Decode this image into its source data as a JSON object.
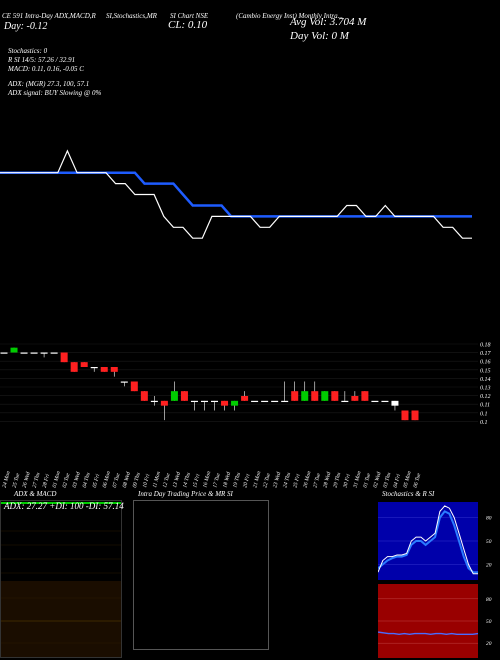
{
  "header": {
    "col1_line1": "CE 591 Intra-Day ADX,MACD,R",
    "col2_line1": "SI,Stochastics,MR",
    "col3_line1": "SI Chart NSE",
    "col4_line1": "(Cambio Energy Inst) Monthly Intra...",
    "ce_label": "CE",
    "day_change": "Day: -0.12",
    "close": "CL: 0.10",
    "avg_vol": "Avg Vol: 3.704  M",
    "day_vol": "Day Vol: 0  M",
    "stoch_line": "Stochastics: 0",
    "rsi_line": "R                    SI 14/5: 57.26  / 32.91",
    "macd_line": "MACD: 0.11,  0.16,  -0.05 C",
    "adx_line": "ADX:                         (MGR) 27.3,  100,  57.1",
    "adx_signal_line": "ADX   signal:                           BUY Slowing @ 0%"
  },
  "colors": {
    "background": "#000000",
    "price_line": "#ffffff",
    "ma_line": "#1e5cff",
    "candle_up": "#00cc00",
    "candle_down": "#ff2020",
    "adx_green": "#00cc00",
    "stoch_fill": "#0000aa",
    "rsi_fill": "#990000"
  },
  "chart_data": [
    {
      "type": "line",
      "name": "price-trend",
      "x": [
        1,
        2,
        3,
        4,
        5,
        6,
        7,
        8,
        9,
        10,
        11,
        12,
        13,
        14,
        15,
        16,
        17,
        18,
        19,
        20,
        21,
        22,
        23,
        24,
        25,
        26,
        27,
        28,
        29,
        30,
        31,
        32,
        33,
        34,
        35,
        36,
        37,
        38,
        39,
        40,
        41,
        42,
        43,
        44,
        45,
        46,
        47,
        48,
        49,
        50
      ],
      "series": [
        {
          "values": [
            0.18,
            0.18,
            0.18,
            0.18,
            0.18,
            0.18,
            0.18,
            0.19,
            0.18,
            0.18,
            0.18,
            0.18,
            0.175,
            0.175,
            0.17,
            0.17,
            0.17,
            0.16,
            0.155,
            0.155,
            0.15,
            0.15,
            0.16,
            0.16,
            0.16,
            0.16,
            0.16,
            0.155,
            0.155,
            0.16,
            0.16,
            0.16,
            0.16,
            0.16,
            0.16,
            0.16,
            0.165,
            0.165,
            0.16,
            0.16,
            0.165,
            0.16,
            0.16,
            0.16,
            0.16,
            0.16,
            0.155,
            0.155,
            0.15,
            0.15
          ]
        },
        {
          "values": [
            0.18,
            0.18,
            0.18,
            0.18,
            0.18,
            0.18,
            0.18,
            0.18,
            0.18,
            0.18,
            0.18,
            0.18,
            0.18,
            0.18,
            0.18,
            0.175,
            0.175,
            0.175,
            0.175,
            0.17,
            0.165,
            0.165,
            0.165,
            0.165,
            0.16,
            0.16,
            0.16,
            0.16,
            0.16,
            0.16,
            0.16,
            0.16,
            0.16,
            0.16,
            0.16,
            0.16,
            0.16,
            0.16,
            0.16,
            0.16,
            0.16,
            0.16,
            0.16,
            0.16,
            0.16,
            0.16,
            0.16,
            0.16,
            0.16,
            0.16
          ]
        }
      ]
    },
    {
      "type": "bar",
      "name": "candles",
      "categories": [
        "24 Mon",
        "25 Tue",
        "26 Wed",
        "27 Thu",
        "28 Fri",
        "01 Mon",
        "02 Tue",
        "03 Wed",
        "04 Thu",
        "05 Fri",
        "06 Mon",
        "07 Tue",
        "08 Wed",
        "09 Thu",
        "10 Fri",
        "11 Mon",
        "12 Tue",
        "13 Wed",
        "14 Thu",
        "15 Fri",
        "16 Mon",
        "17 Tue",
        "18 Wed",
        "19 Thu",
        "20 Fri",
        "21 Mon",
        "22 Tue",
        "23 Wed",
        "24 Thu",
        "25 Fri",
        "26 Mon",
        "27 Tue",
        "28 Wed",
        "29 Thu",
        "30 Fri",
        "31 Mon",
        "01 Tue",
        "02 Wed",
        "03 Thu",
        "04 Fri",
        "05 Mon",
        "06 Tue"
      ],
      "y_ticks": [
        "0.18",
        "0.17",
        "0.16",
        "0.15",
        "0.14",
        "0.13",
        "0.12",
        "0.11",
        "0.1",
        "0.1"
      ],
      "ylim": [
        0.095,
        0.185
      ],
      "candles": [
        {
          "o": 0.17,
          "c": 0.17,
          "h": 0.17,
          "l": 0.17,
          "dir": "flat"
        },
        {
          "o": 0.17,
          "c": 0.175,
          "h": 0.175,
          "l": 0.17,
          "dir": "up"
        },
        {
          "o": 0.17,
          "c": 0.17,
          "h": 0.17,
          "l": 0.17,
          "dir": "flat"
        },
        {
          "o": 0.17,
          "c": 0.17,
          "h": 0.17,
          "l": 0.17,
          "dir": "flat"
        },
        {
          "o": 0.17,
          "c": 0.17,
          "h": 0.17,
          "l": 0.165,
          "dir": "flat"
        },
        {
          "o": 0.17,
          "c": 0.17,
          "h": 0.17,
          "l": 0.17,
          "dir": "flat"
        },
        {
          "o": 0.17,
          "c": 0.16,
          "h": 0.17,
          "l": 0.16,
          "dir": "down"
        },
        {
          "o": 0.16,
          "c": 0.15,
          "h": 0.16,
          "l": 0.15,
          "dir": "down"
        },
        {
          "o": 0.16,
          "c": 0.155,
          "h": 0.16,
          "l": 0.155,
          "dir": "down"
        },
        {
          "o": 0.155,
          "c": 0.155,
          "h": 0.155,
          "l": 0.15,
          "dir": "flat"
        },
        {
          "o": 0.155,
          "c": 0.15,
          "h": 0.155,
          "l": 0.15,
          "dir": "down"
        },
        {
          "o": 0.155,
          "c": 0.15,
          "h": 0.155,
          "l": 0.145,
          "dir": "down"
        },
        {
          "o": 0.14,
          "c": 0.14,
          "h": 0.14,
          "l": 0.135,
          "dir": "flat"
        },
        {
          "o": 0.14,
          "c": 0.13,
          "h": 0.14,
          "l": 0.13,
          "dir": "down"
        },
        {
          "o": 0.13,
          "c": 0.12,
          "h": 0.13,
          "l": 0.12,
          "dir": "down"
        },
        {
          "o": 0.12,
          "c": 0.12,
          "h": 0.125,
          "l": 0.115,
          "dir": "flat"
        },
        {
          "o": 0.12,
          "c": 0.115,
          "h": 0.12,
          "l": 0.1,
          "dir": "down"
        },
        {
          "o": 0.12,
          "c": 0.13,
          "h": 0.14,
          "l": 0.12,
          "dir": "up"
        },
        {
          "o": 0.12,
          "c": 0.13,
          "h": 0.13,
          "l": 0.12,
          "dir": "down"
        },
        {
          "o": 0.12,
          "c": 0.12,
          "h": 0.12,
          "l": 0.11,
          "dir": "flat"
        },
        {
          "o": 0.12,
          "c": 0.12,
          "h": 0.12,
          "l": 0.11,
          "dir": "flat"
        },
        {
          "o": 0.12,
          "c": 0.12,
          "h": 0.12,
          "l": 0.11,
          "dir": "flat"
        },
        {
          "o": 0.12,
          "c": 0.115,
          "h": 0.12,
          "l": 0.11,
          "dir": "down"
        },
        {
          "o": 0.115,
          "c": 0.12,
          "h": 0.12,
          "l": 0.11,
          "dir": "up"
        },
        {
          "o": 0.12,
          "c": 0.125,
          "h": 0.13,
          "l": 0.12,
          "dir": "down"
        },
        {
          "o": 0.12,
          "c": 0.12,
          "h": 0.12,
          "l": 0.12,
          "dir": "flat"
        },
        {
          "o": 0.12,
          "c": 0.12,
          "h": 0.12,
          "l": 0.12,
          "dir": "flat"
        },
        {
          "o": 0.12,
          "c": 0.12,
          "h": 0.12,
          "l": 0.12,
          "dir": "flat"
        },
        {
          "o": 0.12,
          "c": 0.12,
          "h": 0.14,
          "l": 0.12,
          "dir": "flat"
        },
        {
          "o": 0.12,
          "c": 0.13,
          "h": 0.14,
          "l": 0.12,
          "dir": "down"
        },
        {
          "o": 0.12,
          "c": 0.13,
          "h": 0.14,
          "l": 0.12,
          "dir": "up"
        },
        {
          "o": 0.13,
          "c": 0.12,
          "h": 0.14,
          "l": 0.12,
          "dir": "down"
        },
        {
          "o": 0.12,
          "c": 0.13,
          "h": 0.13,
          "l": 0.12,
          "dir": "up"
        },
        {
          "o": 0.13,
          "c": 0.12,
          "h": 0.13,
          "l": 0.12,
          "dir": "down"
        },
        {
          "o": 0.12,
          "c": 0.12,
          "h": 0.13,
          "l": 0.12,
          "dir": "flat"
        },
        {
          "o": 0.125,
          "c": 0.12,
          "h": 0.13,
          "l": 0.12,
          "dir": "down"
        },
        {
          "o": 0.12,
          "c": 0.13,
          "h": 0.13,
          "l": 0.12,
          "dir": "down"
        },
        {
          "o": 0.12,
          "c": 0.12,
          "h": 0.12,
          "l": 0.12,
          "dir": "flat"
        },
        {
          "o": 0.12,
          "c": 0.12,
          "h": 0.12,
          "l": 0.12,
          "dir": "flat"
        },
        {
          "o": 0.12,
          "c": 0.115,
          "h": 0.12,
          "l": 0.11,
          "dir": "flat"
        },
        {
          "o": 0.11,
          "c": 0.1,
          "h": 0.11,
          "l": 0.1,
          "dir": "down"
        },
        {
          "o": 0.11,
          "c": 0.1,
          "h": 0.11,
          "l": 0.1,
          "dir": "down"
        }
      ]
    },
    {
      "type": "line",
      "name": "adx-macd",
      "title": "ADX  & MACD",
      "legend": "ADX: 27.27  +DI: 100  -DI: 57.14"
    },
    {
      "type": "line",
      "name": "stochastics-rsi",
      "title": "Stochastics & R                 SI",
      "y_ticks": [
        "80",
        "50",
        "20"
      ],
      "rsi_ticks": [
        "80",
        "50",
        "20"
      ],
      "series": [
        {
          "values": [
            10,
            25,
            30,
            30,
            32,
            32,
            34,
            50,
            55,
            55,
            50,
            55,
            60,
            88,
            95,
            92,
            80,
            60,
            40,
            20,
            8,
            8
          ]
        },
        {
          "values": [
            15,
            20,
            25,
            28,
            30,
            30,
            32,
            45,
            50,
            50,
            45,
            50,
            55,
            80,
            88,
            85,
            70,
            50,
            30,
            15,
            10,
            10
          ]
        }
      ],
      "rsi_values": [
        35,
        34,
        33,
        33,
        32,
        33,
        32,
        33,
        33,
        33,
        32,
        33,
        33,
        32,
        33,
        32,
        32,
        32,
        32,
        33
      ]
    }
  ],
  "intraday": {
    "title": "Intra  Day Trading Price  & MR                SI"
  }
}
